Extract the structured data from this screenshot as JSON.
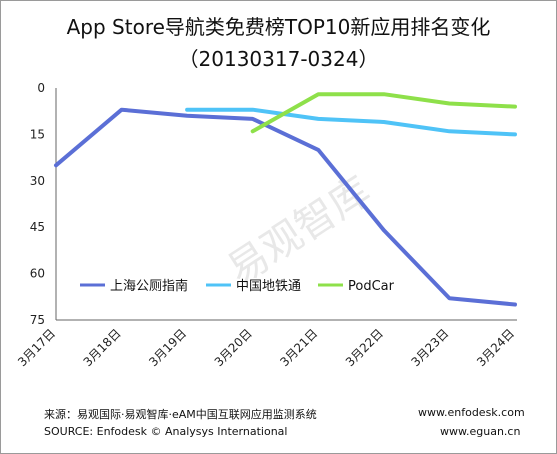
{
  "title": "App Store导航类免费榜TOP10新应用排名变化",
  "subtitle": "（20130317-0324）",
  "watermark": "易观智库",
  "chart_data": {
    "type": "line",
    "title": "App Store导航类免费榜TOP10新应用排名变化",
    "subtitle": "（20130317-0324）",
    "categories": [
      "3月17日",
      "3月18日",
      "3月19日",
      "3月20日",
      "3月21日",
      "3月22日",
      "3月23日",
      "3月24日"
    ],
    "y_ticks": [
      "0",
      "15",
      "30",
      "45",
      "60",
      "75"
    ],
    "ylim": [
      0,
      75
    ],
    "y_inverted": true,
    "grid": false,
    "legend_position": "inside-lower-left",
    "series": [
      {
        "name": "上海公厕指南",
        "color": "#5b6fd6",
        "values": [
          25,
          7,
          9,
          10,
          20,
          46,
          68,
          70
        ]
      },
      {
        "name": "中国地铁通",
        "color": "#4fc3f7",
        "values": [
          null,
          null,
          7,
          7,
          10,
          11,
          14,
          15
        ]
      },
      {
        "name": "PodCar",
        "color": "#8ee04a",
        "values": [
          null,
          null,
          null,
          14,
          2,
          2,
          5,
          6
        ]
      }
    ]
  },
  "footer": {
    "source_cn": "来源：易观国际·易观智库·eAM中国互联网应用监测系统",
    "source_en": "SOURCE: Enfodesk © Analysys International",
    "url1": "www.enfodesk.com",
    "url2": "www.eguan.cn"
  }
}
